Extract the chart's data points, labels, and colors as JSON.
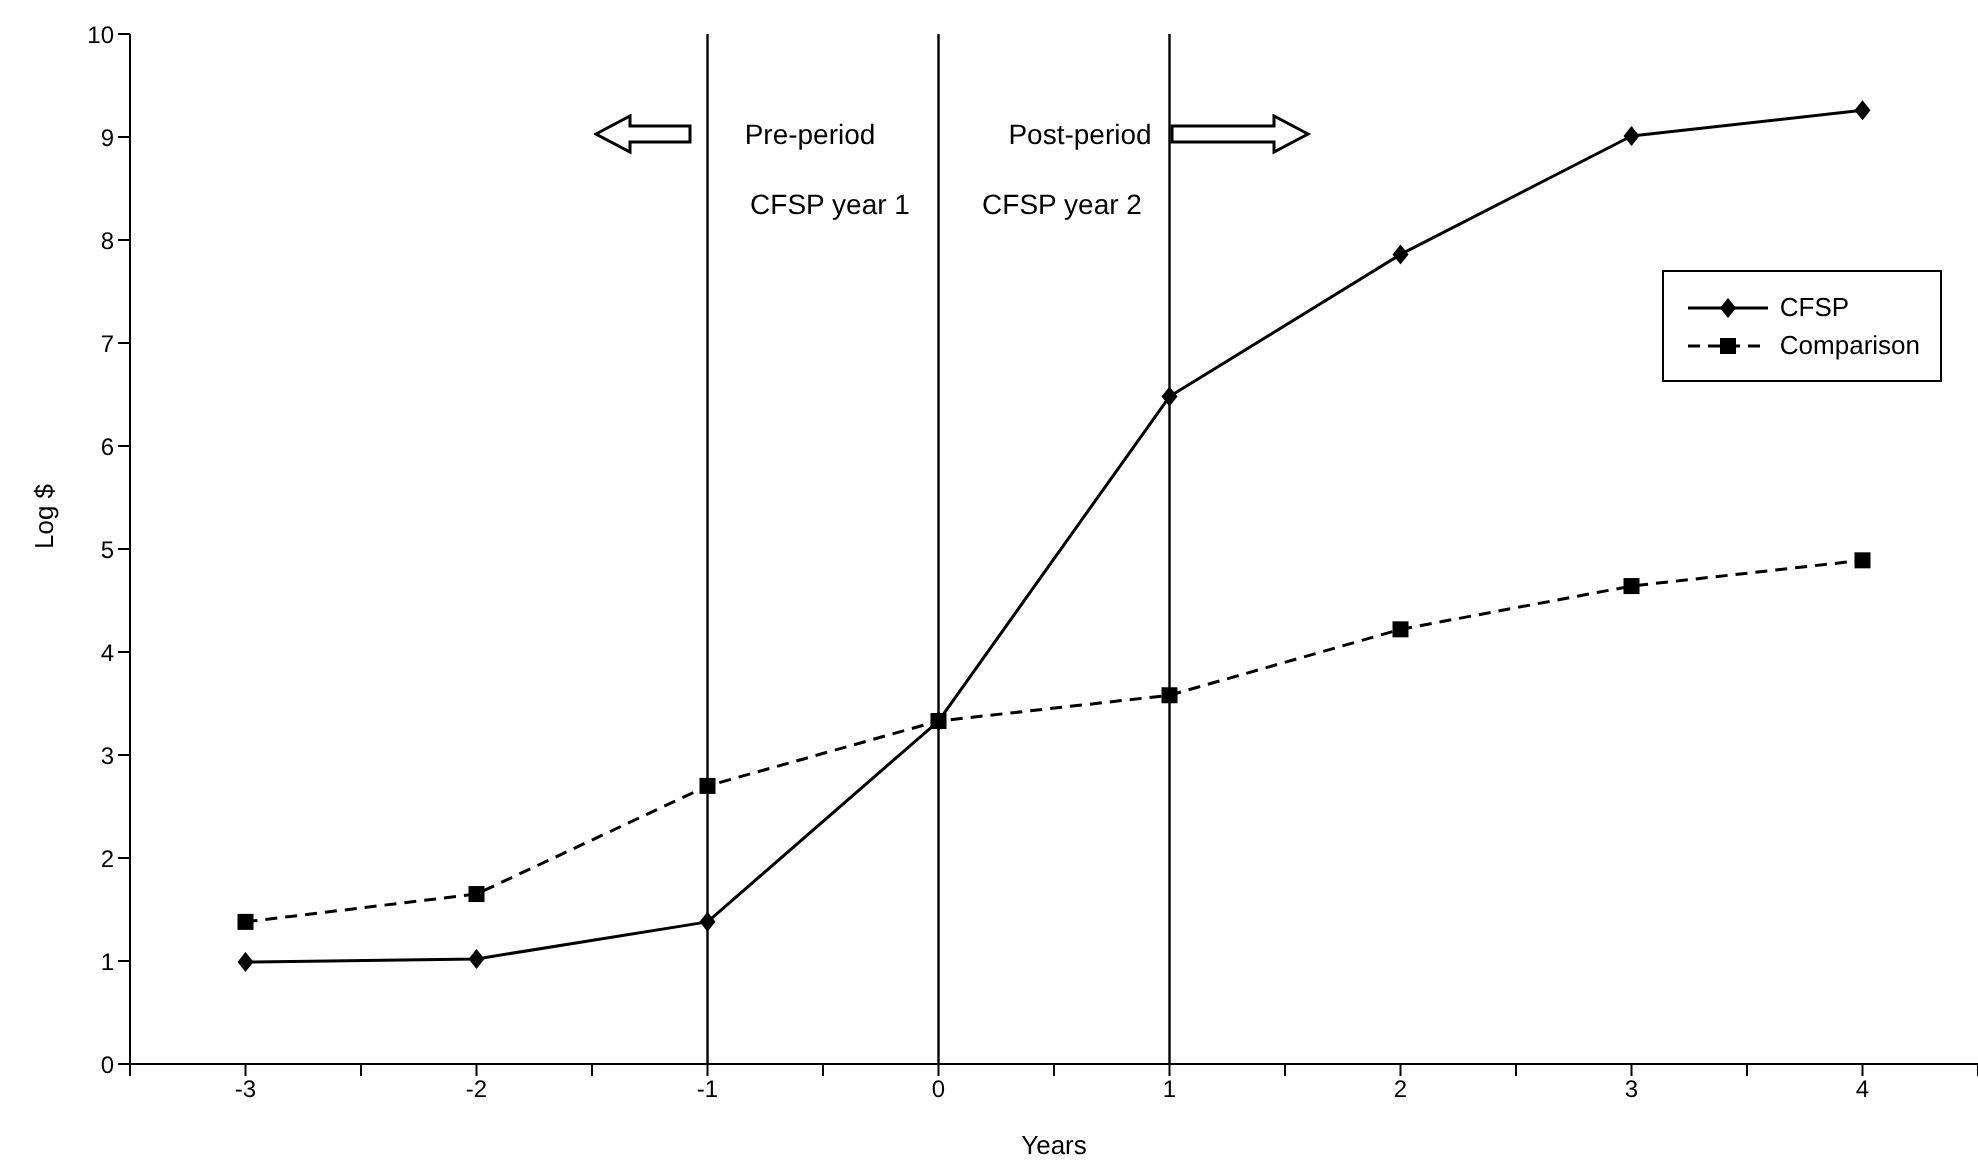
{
  "chart_data": {
    "type": "line",
    "xlabel": "Years",
    "ylabel": "Log $",
    "x": [
      -3,
      -2,
      -1,
      0,
      1,
      2,
      3,
      4
    ],
    "series": [
      {
        "name": "CFSP",
        "color": "#000000",
        "marker": "diamond",
        "line_style": "solid",
        "values": [
          0.99,
          1.02,
          1.38,
          3.33,
          6.48,
          7.86,
          9.01,
          9.26
        ]
      },
      {
        "name": "Comparison",
        "color": "#000000",
        "marker": "square",
        "line_style": "dashed",
        "values": [
          1.38,
          1.65,
          2.7,
          3.33,
          3.58,
          4.22,
          4.64,
          4.89
        ]
      }
    ],
    "xlim": [
      -3.5,
      4.5
    ],
    "xticks": [
      {
        "value": -3.5,
        "label": null
      },
      -3,
      {
        "value": -2.5,
        "label": null
      },
      -2,
      {
        "value": -1.5,
        "label": null
      },
      -1,
      {
        "value": -0.5,
        "label": null
      },
      0,
      {
        "value": 0.5,
        "label": null
      },
      1,
      {
        "value": 1.5,
        "label": null
      },
      2,
      {
        "value": 2.5,
        "label": null
      },
      3,
      {
        "value": 3.5,
        "label": null
      },
      4,
      {
        "value": 4.5,
        "label": null
      }
    ],
    "ylim": [
      0,
      10
    ],
    "yticks": [
      0,
      1,
      2,
      3,
      4,
      5,
      6,
      7,
      8,
      9,
      10
    ],
    "legend": "top right",
    "ref_lines": [
      {
        "axis": "x",
        "value": -1,
        "color": "#000000"
      },
      {
        "axis": "x",
        "value": 0,
        "color": "#000000"
      },
      {
        "axis": "x",
        "value": 1,
        "color": "#000000"
      }
    ],
    "annotations": [
      "Pre-period",
      "Post-period",
      "CFSP year 1",
      "CFSP year 2"
    ]
  }
}
